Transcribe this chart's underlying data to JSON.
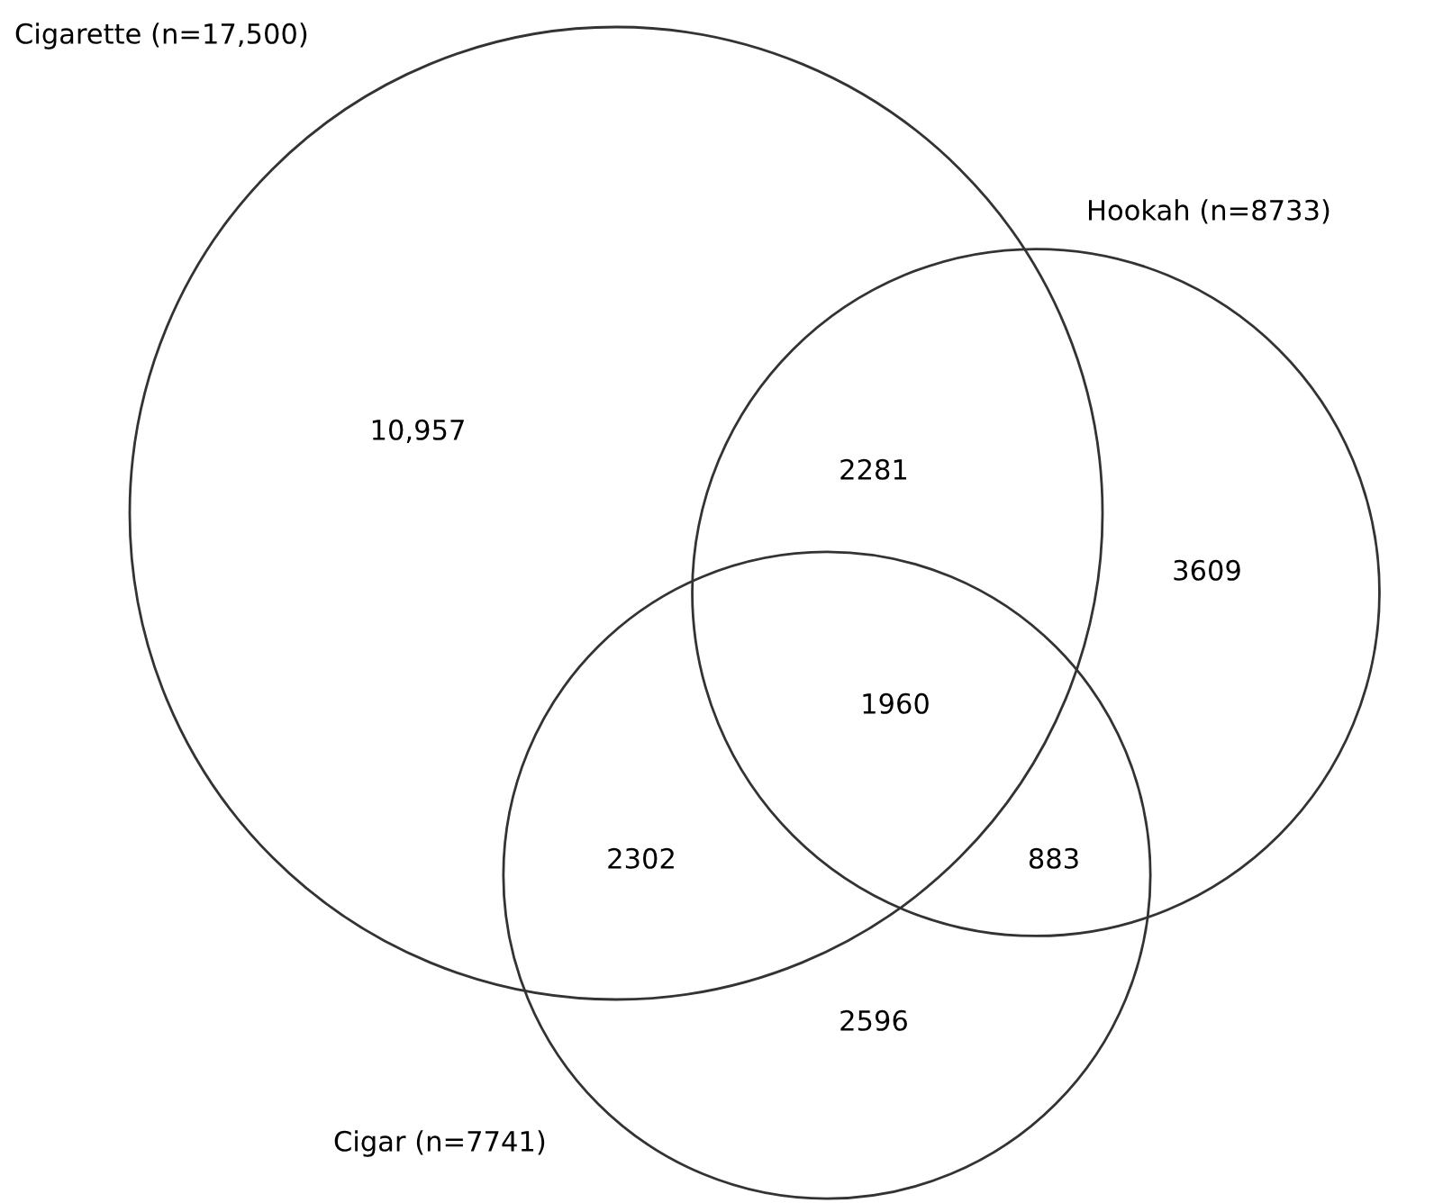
{
  "chart_data": {
    "type": "other",
    "categories": [
      null,
      null,
      null,
      null,
      null,
      null,
      null
    ],
    "values": [
      10957,
      2281,
      3609,
      1960,
      2302,
      883,
      2596
    ],
    "value_labels": [
      "10,957",
      "2281",
      "3609",
      "1960",
      "2302",
      "883",
      "2596"
    ],
    "annotations": [
      "Cigarette (n=17,500)",
      "Hookah (n=8733)",
      "Cigar (n=7741)"
    ]
  }
}
